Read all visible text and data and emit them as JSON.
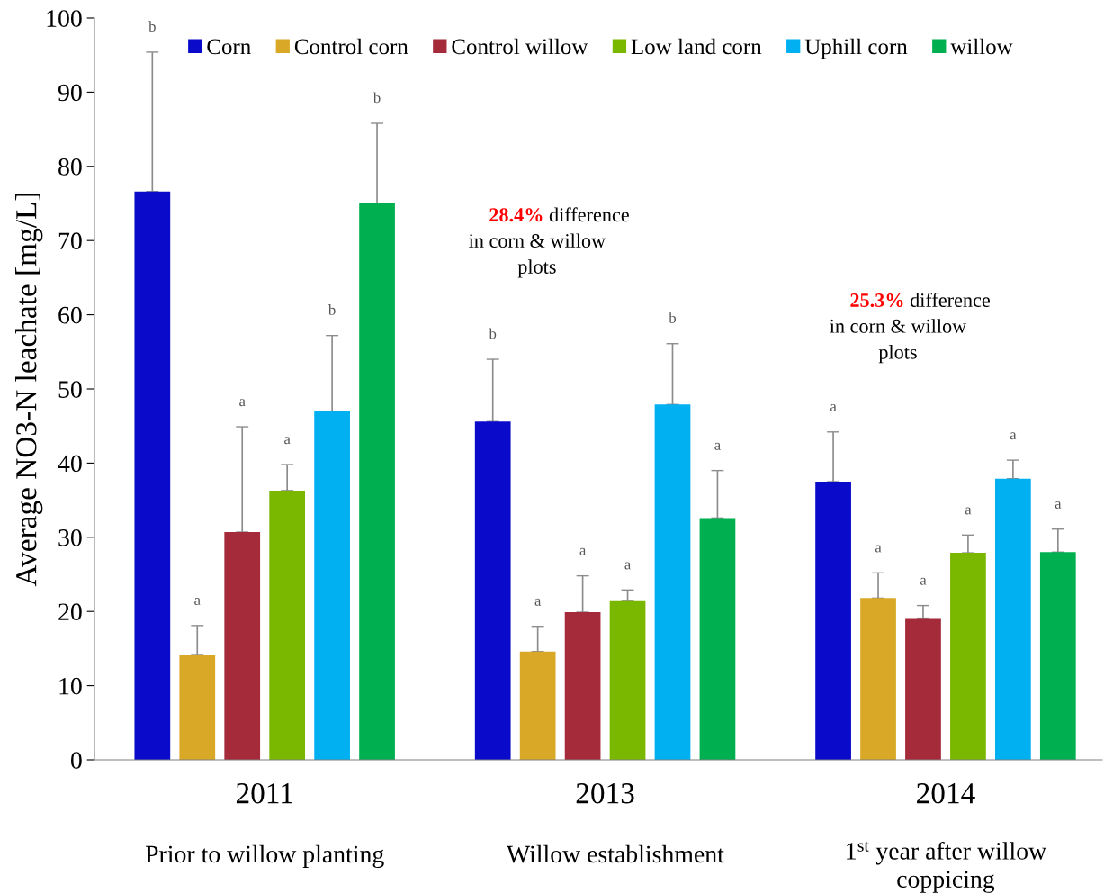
{
  "chart_data": {
    "type": "bar",
    "ylabel": "Average NO3-N leachate [mg/L]",
    "categories": [
      "2011",
      "2013",
      "2014"
    ],
    "series": [
      {
        "name": "Corn",
        "color": "#0a0acb",
        "values": [
          76.6,
          45.6,
          37.5
        ],
        "errors": [
          [
            76.6,
            95.4
          ],
          [
            45.6,
            54.0
          ],
          [
            37.5,
            44.2
          ]
        ]
      },
      {
        "name": "Control corn",
        "color": "#d9a826",
        "values": [
          14.2,
          14.6,
          21.8
        ],
        "errors": [
          [
            14.2,
            18.1
          ],
          [
            14.6,
            18.0
          ],
          [
            21.8,
            25.2
          ]
        ]
      },
      {
        "name": "Control willow",
        "color": "#a52a3a",
        "values": [
          30.7,
          19.9,
          19.1
        ],
        "errors": [
          [
            30.7,
            44.9
          ],
          [
            19.9,
            24.8
          ],
          [
            19.1,
            20.8
          ]
        ]
      },
      {
        "name": "Low land corn",
        "color": "#7ab800",
        "values": [
          36.3,
          21.5,
          27.9
        ],
        "errors": [
          [
            36.3,
            39.8
          ],
          [
            21.5,
            22.9
          ],
          [
            27.9,
            30.3
          ]
        ]
      },
      {
        "name": "Uphill corn",
        "color": "#00b0f0",
        "values": [
          47.0,
          47.9,
          37.9
        ],
        "errors": [
          [
            47.0,
            57.2
          ],
          [
            47.9,
            56.1
          ],
          [
            37.9,
            40.4
          ]
        ]
      },
      {
        "name": "willow",
        "color": "#00b050",
        "values": [
          75.0,
          32.6,
          28.0
        ],
        "errors": [
          [
            75.0,
            85.8
          ],
          [
            32.6,
            39.0
          ],
          [
            28.0,
            31.1
          ]
        ]
      }
    ],
    "ylim": [
      0,
      100
    ],
    "yticks": [
      0,
      10,
      20,
      30,
      40,
      50,
      60,
      70,
      80,
      90,
      100
    ],
    "grid": false,
    "legend": "top",
    "marker": "square",
    "annotations": [
      "b",
      "a",
      "a",
      "a",
      "b",
      "b",
      "b",
      "a",
      "a",
      "a",
      "b",
      "a",
      "a",
      "a",
      "a",
      "a",
      "a",
      "a",
      "Prior to willow planting",
      "Willow establishment",
      "1$^{st}$ year after willow coppicing",
      "28.4% difference in corn & willow plots",
      "25.3% difference in corn & willow plots"
    ]
  }
}
